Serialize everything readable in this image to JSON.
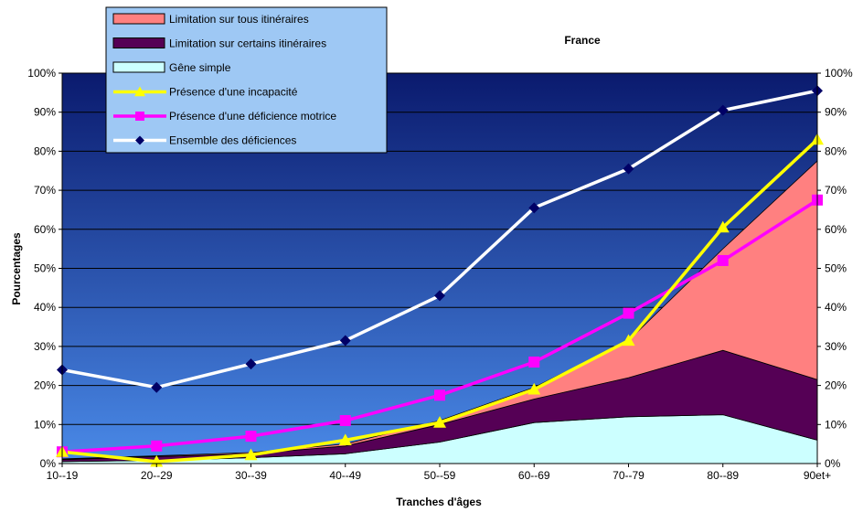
{
  "chart_data": {
    "type": "area",
    "title": "France",
    "xlabel": "Tranches d'âges",
    "ylabel": "Pourcentages",
    "categories": [
      "10--19",
      "20--29",
      "30--39",
      "40--49",
      "50--59",
      "60--69",
      "70--79",
      "80--89",
      "90et+"
    ],
    "ylim": [
      0,
      100
    ],
    "yticks": [
      "0%",
      "10%",
      "20%",
      "30%",
      "40%",
      "50%",
      "60%",
      "70%",
      "80%",
      "90%",
      "100%"
    ],
    "grid": true,
    "legend_position": "top-left",
    "stacked_areas": [
      {
        "name": "Gêne simple",
        "color": "#ccffff",
        "values": [
          0.5,
          0.8,
          1.5,
          2.5,
          5.5,
          10.5,
          12,
          12.5,
          6
        ]
      },
      {
        "name": "Limitation sur certains itinéraires",
        "color": "#550055",
        "values": [
          0.5,
          1.0,
          1.0,
          2.0,
          4.5,
          6.0,
          10.0,
          16.5,
          15.5
        ]
      },
      {
        "name": "Limitation sur tous itinéraires",
        "color": "#ff8080",
        "values": [
          0.2,
          0.2,
          0.3,
          0.5,
          1.0,
          3.0,
          9.5,
          26.0,
          56.0
        ]
      }
    ],
    "series": [
      {
        "name": "Présence d'une incapacité",
        "color": "#ffff00",
        "marker": "triangle",
        "values": [
          3,
          0.5,
          2.2,
          6,
          10.5,
          19,
          31.5,
          60.5,
          83
        ]
      },
      {
        "name": "Présence d'une déficience motrice",
        "color": "#ff00ff",
        "marker": "square",
        "values": [
          3,
          4.5,
          7,
          11,
          17.5,
          26,
          38.5,
          52,
          67.5
        ]
      },
      {
        "name": "Ensemble des déficiences",
        "color": "#ffffff",
        "marker": "diamond",
        "marker_color": "#000066",
        "values": [
          24,
          19.5,
          25.5,
          31.5,
          43,
          65.5,
          75.5,
          90.5,
          95.5
        ]
      }
    ],
    "legend": [
      {
        "label": "Limitation sur tous itinéraires",
        "kind": "area",
        "color": "#ff8080"
      },
      {
        "label": "Limitation sur certains itinéraires",
        "kind": "area",
        "color": "#550055"
      },
      {
        "label": "Gêne simple",
        "kind": "area",
        "color": "#ccffff"
      },
      {
        "label": "Présence d'une incapacité",
        "kind": "line",
        "color": "#ffff00",
        "marker": "triangle"
      },
      {
        "label": "Présence d'une déficience motrice",
        "kind": "line",
        "color": "#ff00ff",
        "marker": "square"
      },
      {
        "label": "Ensemble des déficiences",
        "kind": "line",
        "color": "#ffffff",
        "marker": "diamond",
        "marker_color": "#000066"
      }
    ]
  }
}
